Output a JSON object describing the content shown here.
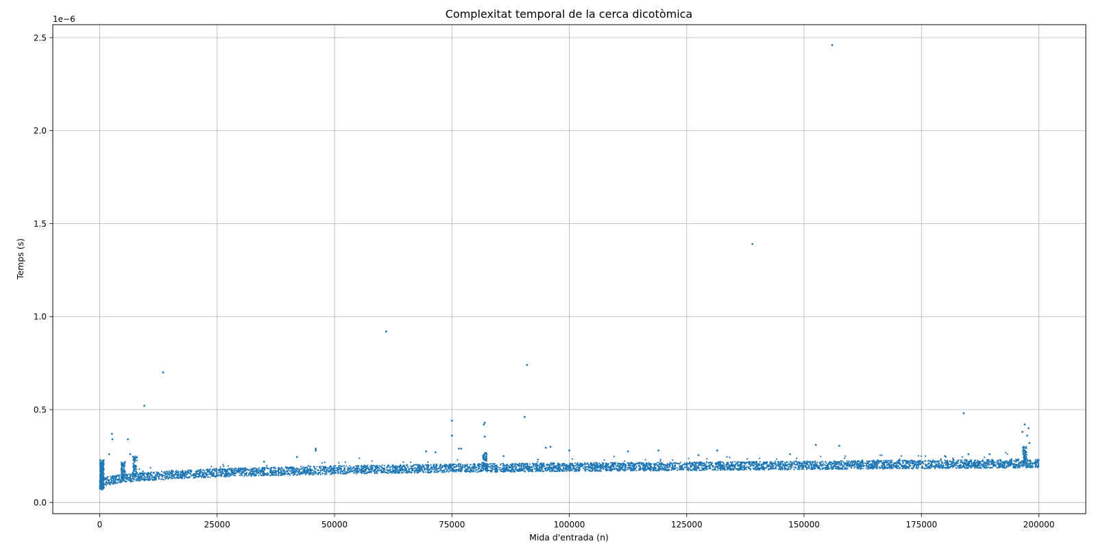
{
  "chart_data": {
    "type": "scatter",
    "title": "Complexitat temporal de la cerca dicotòmica",
    "xlabel": "Mida d'entrada (n)",
    "ylabel": "Temps (s)",
    "y_offset_label": "1e−6",
    "xlim": [
      -10000,
      210000
    ],
    "ylim": [
      -0.06,
      2.57
    ],
    "y_unit_multiplier": 1e-06,
    "x_ticks": [
      0,
      25000,
      50000,
      75000,
      100000,
      125000,
      150000,
      175000,
      200000
    ],
    "x_tick_labels": [
      "0",
      "25000",
      "50000",
      "75000",
      "100000",
      "125000",
      "150000",
      "175000",
      "200000"
    ],
    "y_ticks": [
      0.0,
      0.5,
      1.0,
      1.5,
      2.0,
      2.5
    ],
    "y_tick_labels": [
      "0.0",
      "0.5",
      "1.0",
      "1.5",
      "2.0",
      "2.5"
    ],
    "grid": true,
    "marker_color": "#1f77b4",
    "baseline_trend": [
      [
        0,
        0.11
      ],
      [
        1000,
        0.115
      ],
      [
        5000,
        0.13
      ],
      [
        10000,
        0.14
      ],
      [
        15000,
        0.148
      ],
      [
        25000,
        0.16
      ],
      [
        50000,
        0.175
      ],
      [
        75000,
        0.185
      ],
      [
        100000,
        0.19
      ],
      [
        125000,
        0.195
      ],
      [
        150000,
        0.2
      ],
      [
        175000,
        0.205
      ],
      [
        200000,
        0.21
      ]
    ],
    "outliers": [
      [
        156000,
        2.46
      ],
      [
        139000,
        1.39
      ],
      [
        61000,
        0.92
      ],
      [
        91000,
        0.74
      ],
      [
        13500,
        0.7
      ],
      [
        9500,
        0.52
      ],
      [
        184000,
        0.48
      ],
      [
        90500,
        0.46
      ],
      [
        75000,
        0.44
      ],
      [
        82000,
        0.43
      ],
      [
        81800,
        0.42
      ],
      [
        197000,
        0.42
      ],
      [
        2600,
        0.37
      ],
      [
        6000,
        0.34
      ],
      [
        2700,
        0.34
      ],
      [
        75000,
        0.36
      ],
      [
        82000,
        0.355
      ],
      [
        152500,
        0.31
      ],
      [
        157500,
        0.305
      ],
      [
        95000,
        0.295
      ],
      [
        96000,
        0.3
      ],
      [
        100000,
        0.28
      ],
      [
        119000,
        0.28
      ],
      [
        131500,
        0.28
      ],
      [
        112500,
        0.275
      ],
      [
        46000,
        0.29
      ],
      [
        46000,
        0.28
      ],
      [
        69500,
        0.275
      ],
      [
        71500,
        0.27
      ],
      [
        76500,
        0.29
      ],
      [
        77000,
        0.29
      ],
      [
        147000,
        0.26
      ],
      [
        185000,
        0.26
      ],
      [
        2000,
        0.26
      ],
      [
        6500,
        0.26
      ],
      [
        86000,
        0.25
      ],
      [
        127500,
        0.255
      ],
      [
        42000,
        0.245
      ],
      [
        35000,
        0.22
      ],
      [
        189500,
        0.26
      ],
      [
        180000,
        0.25
      ],
      [
        196500,
        0.38
      ],
      [
        197500,
        0.36
      ],
      [
        198000,
        0.32
      ],
      [
        196800,
        0.3
      ],
      [
        197800,
        0.4
      ]
    ]
  }
}
